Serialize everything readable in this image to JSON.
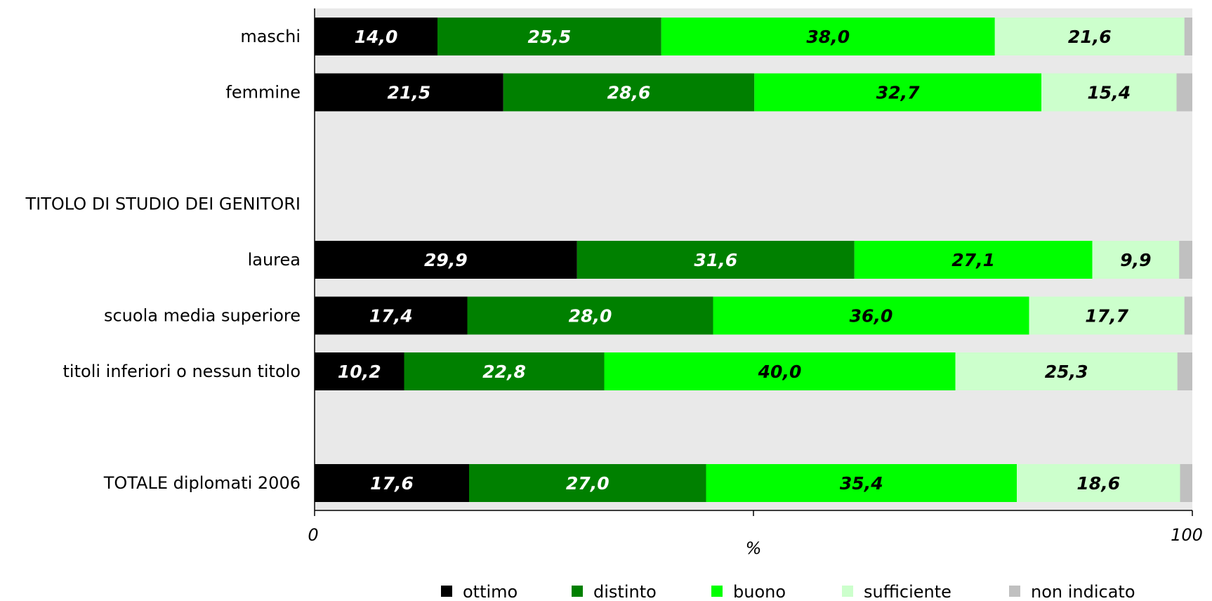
{
  "chart_data": {
    "type": "bar",
    "orientation": "horizontal",
    "stacked": true,
    "categories": [
      "maschi",
      "femmine",
      "",
      "TITOLO DI STUDIO DEI GENITORI",
      "laurea",
      "scuola media superiore",
      "titoli inferiori o nessun titolo",
      "",
      "TOTALE diplomati 2006"
    ],
    "series": [
      {
        "name": "ottimo",
        "color": "#000000",
        "label_color": "#ffffff",
        "values": [
          14.0,
          21.5,
          null,
          null,
          29.9,
          17.4,
          10.2,
          null,
          17.6
        ],
        "labels": [
          "14,0",
          "21,5",
          "",
          "",
          "29,9",
          "17,4",
          "10,2",
          "",
          "17,6"
        ]
      },
      {
        "name": "distinto",
        "color": "#008000",
        "label_color": "#ffffff",
        "values": [
          25.5,
          28.6,
          null,
          null,
          31.6,
          28.0,
          22.8,
          null,
          27.0
        ],
        "labels": [
          "25,5",
          "28,6",
          "",
          "",
          "31,6",
          "28,0",
          "22,8",
          "",
          "27,0"
        ]
      },
      {
        "name": "buono",
        "color": "#00ff00",
        "label_color": "#000000",
        "values": [
          38.0,
          32.7,
          null,
          null,
          27.1,
          36.0,
          40.0,
          null,
          35.4
        ],
        "labels": [
          "38,0",
          "32,7",
          "",
          "",
          "27,1",
          "36,0",
          "40,0",
          "",
          "35,4"
        ]
      },
      {
        "name": "sufficiente",
        "color": "#ccffcc",
        "label_color": "#000000",
        "values": [
          21.6,
          15.4,
          null,
          null,
          9.9,
          17.7,
          25.3,
          null,
          18.6
        ],
        "labels": [
          "21,6",
          "15,4",
          "",
          "",
          "9,9",
          "17,7",
          "25,3",
          "",
          "18,6"
        ]
      },
      {
        "name": "non indicato",
        "color": "#c0c0c0",
        "label_color": "#000000",
        "values": [
          0.9,
          1.8,
          null,
          null,
          1.5,
          0.9,
          1.8,
          null,
          1.4
        ],
        "labels": [
          "",
          "",
          "",
          "",
          "",
          "",
          "",
          "",
          ""
        ]
      }
    ],
    "xlim": [
      0,
      100
    ],
    "xticks": [
      "0",
      "100"
    ],
    "xlabel": "%",
    "plot_background": "#e9e9e9",
    "grid": false,
    "legend_position": "bottom"
  }
}
